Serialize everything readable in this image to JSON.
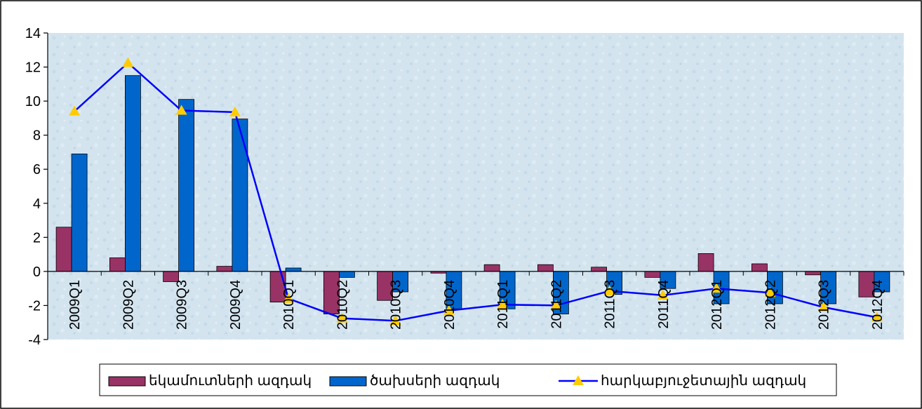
{
  "chart_data": {
    "type": "bar",
    "categories": [
      "2009Q1",
      "2009Q2",
      "2009Q3",
      "2009Q4",
      "2010Q1",
      "2010Q2",
      "2010Q3",
      "2010Q4",
      "2011Q1",
      "2011Q2",
      "2011Q3",
      "2011Q4",
      "2012Q1",
      "2012Q2",
      "2012Q3",
      "2012Q4"
    ],
    "series": [
      {
        "name": "եկամուտների ազդակ",
        "kind": "bar",
        "color": "#993366",
        "values": [
          2.6,
          0.8,
          -0.6,
          0.3,
          -1.8,
          -2.5,
          -1.7,
          -0.1,
          0.4,
          0.4,
          0.25,
          -0.35,
          1.05,
          0.45,
          -0.2,
          -1.5
        ]
      },
      {
        "name": "ծախսերի ազդակ",
        "kind": "bar",
        "color": "#0066CC",
        "values": [
          6.9,
          11.5,
          10.1,
          8.95,
          0.2,
          -0.35,
          -1.2,
          -2.2,
          -2.2,
          -2.5,
          -1.35,
          -1.0,
          -1.9,
          -1.9,
          -1.9,
          -1.2
        ]
      },
      {
        "name": "հարկաբյուջետային ազդակ",
        "kind": "line",
        "color": "#0000FF",
        "marker": "triangle",
        "marker_color": "#FFCC00",
        "values": [
          9.4,
          12.25,
          9.45,
          9.35,
          -1.6,
          -2.75,
          -2.9,
          -2.3,
          -1.95,
          -2.0,
          -1.15,
          -1.4,
          -1.0,
          -1.25,
          -2.1,
          -2.7
        ]
      }
    ],
    "ylim": [
      -4,
      14
    ],
    "yticks": [
      -4,
      -2,
      0,
      2,
      4,
      6,
      8,
      10,
      12,
      14
    ],
    "grid": false,
    "legend": "bottom",
    "title": "",
    "xlabel": "",
    "ylabel": ""
  }
}
